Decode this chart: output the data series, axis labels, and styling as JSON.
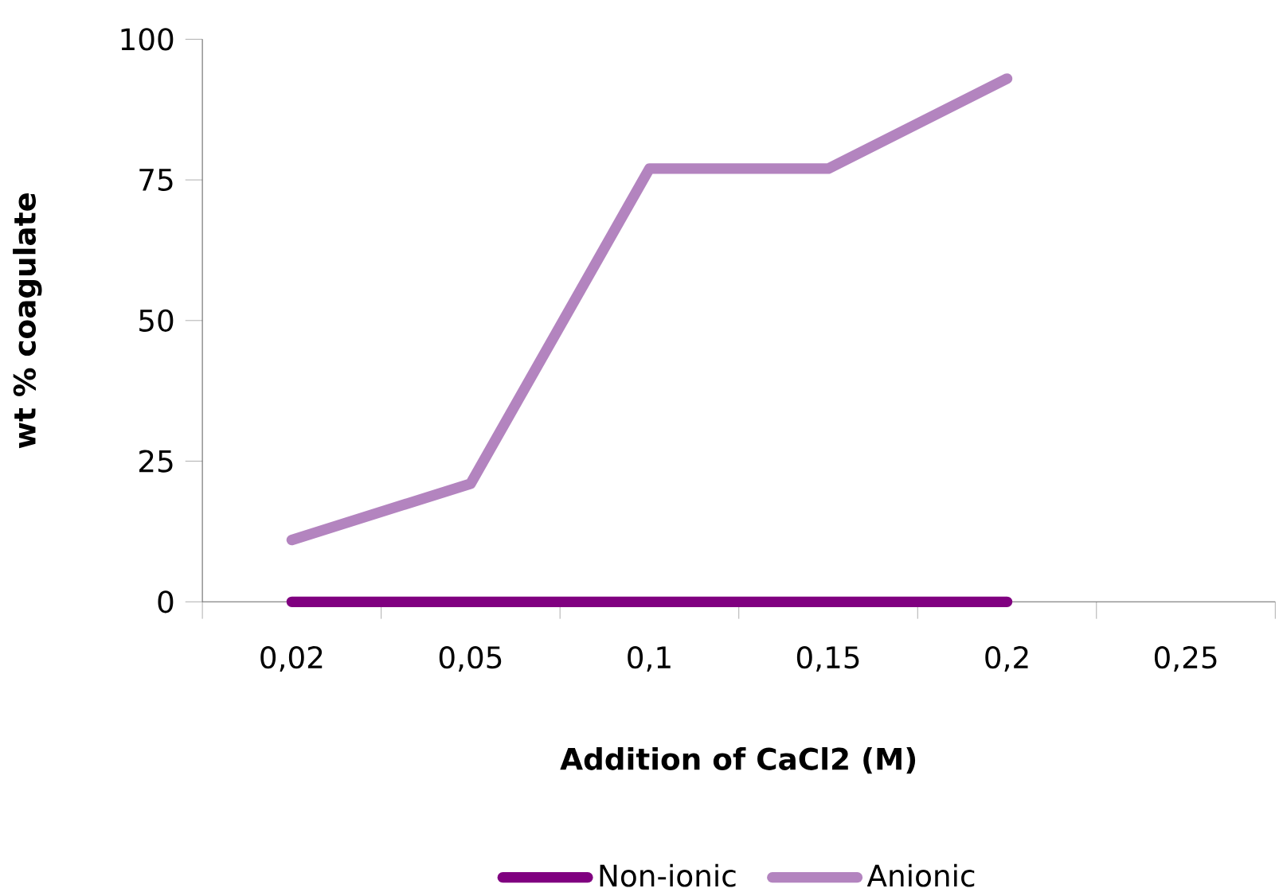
{
  "chart_data": {
    "type": "line",
    "xlabel": "Addition of CaCl2 (M)",
    "ylabel": "wt % coagulate",
    "categories": [
      "0,02",
      "0,05",
      "0,1",
      "0,15",
      "0,2",
      "0,25"
    ],
    "series": [
      {
        "name": "Non-ionic",
        "color": "#800080",
        "values": [
          0,
          0,
          0,
          0,
          0,
          null
        ]
      },
      {
        "name": "Anionic",
        "color": "#b384bf",
        "values": [
          11,
          21,
          77,
          77,
          93,
          null
        ]
      }
    ],
    "ylim": [
      0,
      100
    ],
    "yticks": [
      0,
      25,
      50,
      75,
      100
    ],
    "legend": "bottom",
    "marker": "none",
    "line_style": "solid"
  }
}
